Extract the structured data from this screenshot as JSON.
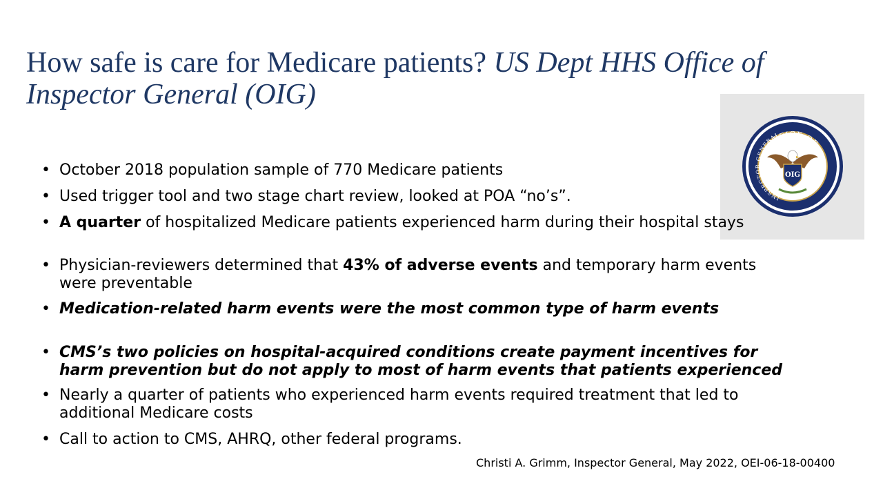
{
  "title": {
    "main": "How safe is care for Medicare patients? ",
    "italic": "US Dept HHS Office of Inspector General (OIG)"
  },
  "logo": {
    "icon": "oig-seal-logo",
    "seal_text_top": "OFFICE OF",
    "seal_text_ring": "INSPECTOR GENERAL",
    "seal_text_center": "OIG"
  },
  "bullets": {
    "b1": "October 2018 population sample of 770 Medicare patients",
    "b2": "Used trigger tool and two stage chart review, looked at POA “no’s”.",
    "b3_bold": "A quarter",
    "b3_rest": " of hospitalized Medicare patients experienced harm during their hospital stays",
    "b4_pre": "Physician-reviewers determined that ",
    "b4_bold": "43% of adverse events",
    "b4_post": " and temporary harm events were preventable",
    "b5": "Medication-related harm events were the most common type of harm events",
    "b6": "CMS’s two policies on hospital-acquired conditions create payment incentives for harm prevention but do not apply to most of harm events that patients experienced",
    "b7": "Nearly a quarter of patients who experienced harm events required treatment that led to additional Medicare costs",
    "b8": "Call to action to CMS, AHRQ, other federal programs."
  },
  "footer": {
    "citation": "Christi A. Grimm, Inspector General, May 2022, OEI-06-18-00400"
  },
  "colors": {
    "title": "#1f3864",
    "seal_navy": "#1b2f6e",
    "seal_gold": "#c8a24a",
    "logo_bg": "#e6e6e6"
  }
}
